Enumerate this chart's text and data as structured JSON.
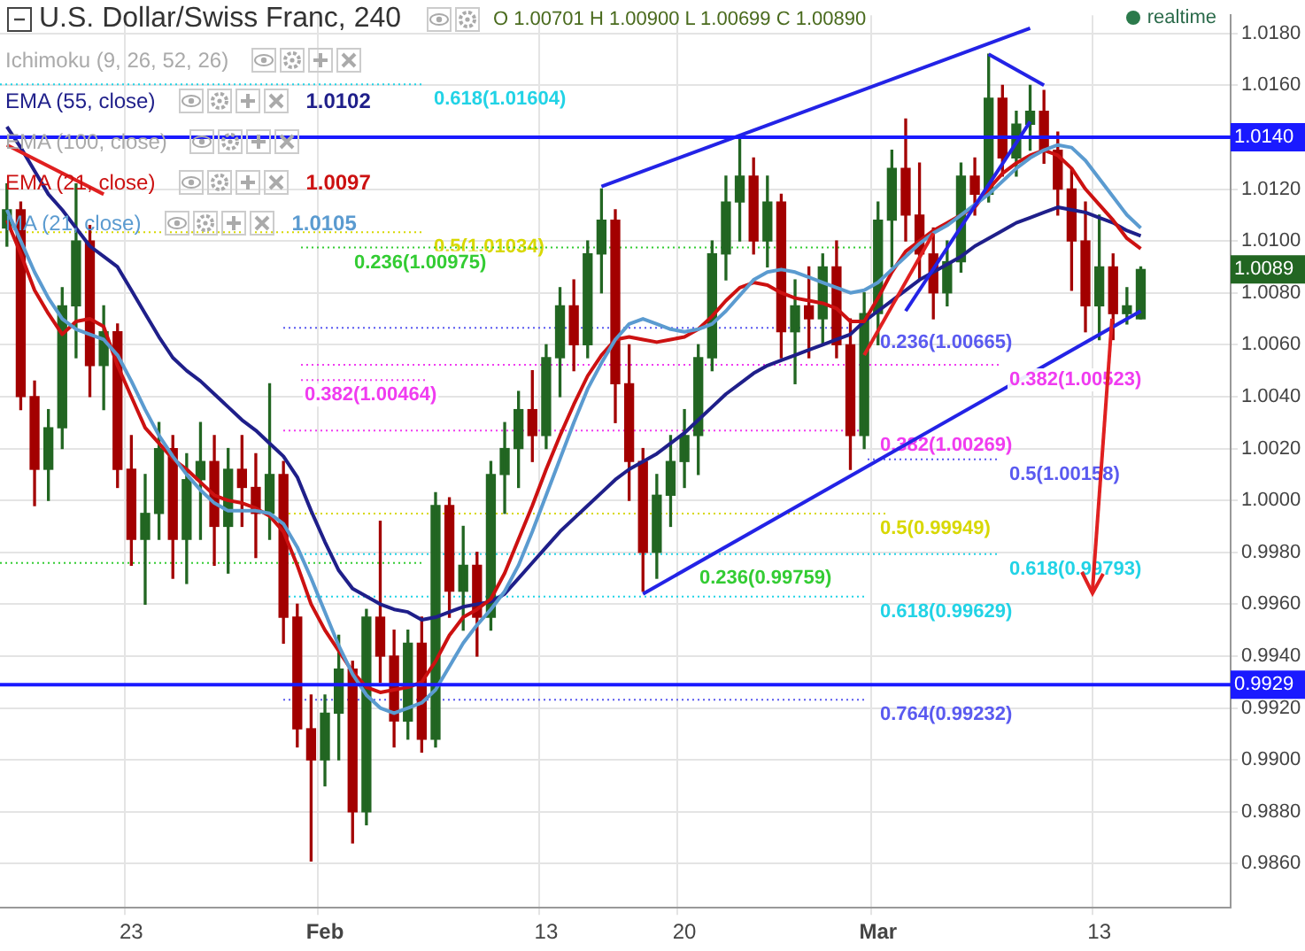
{
  "chart_data": {
    "type": "candlestick",
    "title": "U.S. Dollar/Swiss Franc, 240",
    "categories": [
      null,
      null,
      null,
      null,
      null,
      null,
      null,
      null,
      null,
      "23",
      null,
      null,
      null,
      null,
      null,
      null,
      null,
      null,
      null,
      null,
      null,
      null,
      null,
      "Feb",
      null,
      null,
      null,
      null,
      null,
      null,
      null,
      null,
      null,
      null,
      null,
      null,
      null,
      null,
      null,
      "13",
      null,
      null,
      null,
      null,
      null,
      null,
      null,
      null,
      null,
      "20",
      null,
      null,
      null,
      null,
      null,
      null,
      null,
      null,
      null,
      null,
      null,
      null,
      null,
      "Mar",
      null,
      null,
      null,
      null,
      null,
      null,
      null,
      null,
      null,
      null,
      null,
      null,
      null,
      null,
      null,
      "13",
      null,
      null,
      null,
      null,
      null,
      null,
      null,
      null,
      null
    ],
    "ohlc": [
      [
        1.0105,
        1.0122,
        1.0098,
        1.0112
      ],
      [
        1.0112,
        1.0115,
        1.0035,
        1.004
      ],
      [
        1.004,
        1.0046,
        0.9998,
        1.0012
      ],
      [
        1.0012,
        1.0035,
        1.0,
        1.0028
      ],
      [
        1.0028,
        1.0082,
        1.002,
        1.0075
      ],
      [
        1.0075,
        1.0122,
        1.0055,
        1.01
      ],
      [
        1.01,
        1.0106,
        1.004,
        1.0052
      ],
      [
        1.0052,
        1.0075,
        1.0035,
        1.0065
      ],
      [
        1.0065,
        1.0068,
        1.0005,
        1.0012
      ],
      [
        1.0012,
        1.0025,
        0.9975,
        0.9985
      ],
      [
        0.9985,
        1.001,
        0.996,
        0.9995
      ],
      [
        0.9995,
        1.003,
        0.9985,
        1.002
      ],
      [
        1.002,
        1.0025,
        0.997,
        0.9985
      ],
      [
        0.9985,
        1.0018,
        0.9968,
        1.0008
      ],
      [
        1.0008,
        1.003,
        0.9985,
        1.0015
      ],
      [
        1.0015,
        1.0025,
        0.9975,
        0.999
      ],
      [
        0.999,
        1.002,
        0.9972,
        1.0012
      ],
      [
        1.0012,
        1.0025,
        0.999,
        1.0005
      ],
      [
        1.0005,
        1.0018,
        0.9978,
        0.9995
      ],
      [
        0.9995,
        1.0045,
        0.9985,
        1.001
      ],
      [
        1.001,
        1.0015,
        0.9945,
        0.9955
      ],
      [
        0.9955,
        0.996,
        0.9905,
        0.9912
      ],
      [
        0.9912,
        0.9925,
        0.9861,
        0.99
      ],
      [
        0.99,
        0.9925,
        0.989,
        0.9918
      ],
      [
        0.9918,
        0.9948,
        0.99,
        0.9935
      ],
      [
        0.9935,
        0.9938,
        0.9868,
        0.988
      ],
      [
        0.988,
        0.9958,
        0.9875,
        0.9955
      ],
      [
        0.9955,
        0.9992,
        0.993,
        0.994
      ],
      [
        0.994,
        0.995,
        0.9905,
        0.9915
      ],
      [
        0.9915,
        0.995,
        0.9908,
        0.9945
      ],
      [
        0.9945,
        0.9955,
        0.9903,
        0.9908
      ],
      [
        0.9908,
        1.0003,
        0.9905,
        0.9998
      ],
      [
        0.9998,
        1.0001,
        0.9955,
        0.9965
      ],
      [
        0.9965,
        0.999,
        0.995,
        0.9975
      ],
      [
        0.9975,
        0.998,
        0.994,
        0.9955
      ],
      [
        0.9955,
        1.0015,
        0.995,
        1.001
      ],
      [
        1.001,
        1.003,
        0.9995,
        1.002
      ],
      [
        1.002,
        1.0042,
        1.0005,
        1.0035
      ],
      [
        1.0035,
        1.005,
        1.0015,
        1.0025
      ],
      [
        1.0025,
        1.006,
        1.002,
        1.0055
      ],
      [
        1.0055,
        1.0082,
        1.004,
        1.0075
      ],
      [
        1.0075,
        1.0085,
        1.005,
        1.006
      ],
      [
        1.006,
        1.01,
        1.0055,
        1.0095
      ],
      [
        1.0095,
        1.012,
        1.008,
        1.0108
      ],
      [
        1.0108,
        1.0112,
        1.003,
        1.0045
      ],
      [
        1.0045,
        1.006,
        1.0,
        1.0015
      ],
      [
        1.0015,
        1.002,
        0.9965,
        0.998
      ],
      [
        0.998,
        1.001,
        0.997,
        1.0002
      ],
      [
        1.0002,
        1.0025,
        0.999,
        1.0015
      ],
      [
        1.0015,
        1.0035,
        1.0005,
        1.0025
      ],
      [
        1.0025,
        1.006,
        1.001,
        1.0055
      ],
      [
        1.0055,
        1.01,
        1.005,
        1.0095
      ],
      [
        1.0095,
        1.0125,
        1.0085,
        1.0115
      ],
      [
        1.0115,
        1.014,
        1.01,
        1.0125
      ],
      [
        1.0125,
        1.0132,
        1.0095,
        1.01
      ],
      [
        1.01,
        1.0125,
        1.009,
        1.0115
      ],
      [
        1.0115,
        1.0118,
        1.0055,
        1.0065
      ],
      [
        1.0065,
        1.0085,
        1.0045,
        1.0075
      ],
      [
        1.0075,
        1.009,
        1.0055,
        1.007
      ],
      [
        1.007,
        1.0095,
        1.006,
        1.009
      ],
      [
        1.009,
        1.01,
        1.0055,
        1.006
      ],
      [
        1.006,
        1.007,
        1.0012,
        1.0025
      ],
      [
        1.0025,
        1.008,
        1.002,
        1.0072
      ],
      [
        1.0072,
        1.0115,
        1.006,
        1.0108
      ],
      [
        1.0108,
        1.0135,
        1.009,
        1.0128
      ],
      [
        1.0128,
        1.0147,
        1.01,
        1.011
      ],
      [
        1.011,
        1.013,
        1.0085,
        1.0095
      ],
      [
        1.0095,
        1.0105,
        1.007,
        1.008
      ],
      [
        1.008,
        1.01,
        1.0075,
        1.0092
      ],
      [
        1.0092,
        1.013,
        1.0088,
        1.0125
      ],
      [
        1.0125,
        1.0132,
        1.011,
        1.0118
      ],
      [
        1.0118,
        1.0172,
        1.0115,
        1.0155
      ],
      [
        1.0155,
        1.016,
        1.0125,
        1.0132
      ],
      [
        1.0132,
        1.015,
        1.0125,
        1.0145
      ],
      [
        1.0145,
        1.016,
        1.0135,
        1.015
      ],
      [
        1.015,
        1.0158,
        1.013,
        1.0135
      ],
      [
        1.0135,
        1.0142,
        1.011,
        1.012
      ],
      [
        1.012,
        1.0128,
        1.0081,
        1.01
      ],
      [
        1.01,
        1.0115,
        1.0065,
        1.0075
      ],
      [
        1.0075,
        1.011,
        1.0062,
        1.009
      ],
      [
        1.009,
        1.0095,
        1.0062,
        1.0072
      ],
      [
        1.0072,
        1.0082,
        1.0068,
        1.0075
      ],
      [
        1.007,
        1.009,
        1.007,
        1.0089
      ],
      null,
      null,
      null,
      null,
      null,
      null
    ],
    "colors": [
      "#226622",
      "#a30000",
      "#a30000",
      "#226622",
      "#226622",
      "#226622",
      "#a30000",
      "#226622",
      "#a30000",
      "#a30000",
      "#226622",
      "#226622",
      "#a30000",
      "#226622",
      "#226622",
      "#a30000",
      "#226622",
      "#a30000",
      "#a30000",
      "#226622",
      "#a30000",
      "#a30000",
      "#a30000",
      "#226622",
      "#226622",
      "#a30000",
      "#226622",
      "#a30000",
      "#a30000",
      "#226622",
      "#a30000",
      "#226622",
      "#a30000",
      "#226622",
      "#a30000",
      "#226622",
      "#226622",
      "#226622",
      "#a30000",
      "#226622",
      "#226622",
      "#a30000",
      "#226622",
      "#226622",
      "#a30000",
      "#a30000",
      "#a30000",
      "#226622",
      "#226622",
      "#226622",
      "#226622",
      "#226622",
      "#226622",
      "#226622",
      "#a30000",
      "#226622",
      "#a30000",
      "#226622",
      "#a30000",
      "#226622",
      "#a30000",
      "#a30000",
      "#226622",
      "#226622",
      "#226622",
      "#a30000",
      "#a30000",
      "#a30000",
      "#226622",
      "#226622",
      "#a30000",
      "#226622",
      "#a30000",
      "#226622",
      "#226622",
      "#a30000",
      "#a30000",
      "#a30000",
      "#a30000",
      "#226622",
      "#a30000",
      "#226622",
      "#226622",
      null,
      null,
      null,
      null,
      null,
      null
    ],
    "series": [
      {
        "type": "line",
        "name": "EMA (55, close)",
        "color": "#1f1f8a",
        "values": [
          1.0144,
          1.0136,
          1.0127,
          1.0118,
          1.0112,
          1.0105,
          1.0098,
          1.0094,
          1.009,
          1.0081,
          1.0072,
          1.0063,
          1.0055,
          1.005,
          1.0046,
          1.0041,
          1.0036,
          1.0031,
          1.0027,
          1.0022,
          1.0017,
          1.0009,
          0.9996,
          0.9984,
          0.9973,
          0.9966,
          0.9963,
          0.996,
          0.9958,
          0.9957,
          0.9954,
          0.9955,
          0.9957,
          0.9959,
          0.996,
          0.9961,
          0.9964,
          0.997,
          0.9976,
          0.9982,
          0.9988,
          0.9993,
          0.9998,
          1.0003,
          1.0008,
          1.0012,
          1.0015,
          1.0018,
          1.0022,
          1.0026,
          1.0031,
          1.0036,
          1.0041,
          1.0045,
          1.0049,
          1.0052,
          1.0054,
          1.0056,
          1.0058,
          1.006,
          1.0062,
          1.0064,
          1.0069,
          1.0073,
          1.0077,
          1.0081,
          1.0085,
          1.0088,
          1.0091,
          1.0094,
          1.0098,
          1.0101,
          1.0104,
          1.0107,
          1.0109,
          1.0111,
          1.0113,
          1.0112,
          1.0111,
          1.0109,
          1.0107,
          1.0104,
          1.0102,
          null,
          null,
          null,
          null,
          null,
          null
        ]
      },
      {
        "type": "line",
        "name": "EMA (21, close)",
        "color": "#cc1111",
        "values": [
          1.0108,
          1.0095,
          1.0081,
          1.0072,
          1.0064,
          1.0069,
          1.007,
          1.0067,
          1.0052,
          1.004,
          1.0028,
          1.0022,
          1.0016,
          1.0012,
          1.0007,
          1.0002,
          1.0,
          0.9999,
          0.9997,
          0.9994,
          0.9988,
          0.9975,
          0.996,
          0.995,
          0.9942,
          0.9934,
          0.9928,
          0.9926,
          0.9927,
          0.9928,
          0.993,
          0.9938,
          0.9948,
          0.9955,
          0.9958,
          0.9962,
          0.9972,
          0.9985,
          0.9998,
          1.0012,
          1.0025,
          1.0037,
          1.0048,
          1.0056,
          1.0062,
          1.0063,
          1.0062,
          1.0061,
          1.0062,
          1.0063,
          1.0066,
          1.0071,
          1.0077,
          1.0082,
          1.0084,
          1.0083,
          1.008,
          1.0078,
          1.0077,
          1.0076,
          1.0074,
          1.0069,
          1.0069,
          1.0078,
          1.0088,
          1.0096,
          1.01,
          1.0104,
          1.0107,
          1.011,
          1.0113,
          1.012,
          1.0126,
          1.013,
          1.0133,
          1.0135,
          1.0133,
          1.0128,
          1.012,
          1.0114,
          1.0108,
          1.0101,
          1.0097,
          null,
          null,
          null,
          null,
          null,
          null
        ]
      },
      {
        "type": "line",
        "name": "MA (21, close)",
        "color": "#5b9bd0",
        "values": [
          1.0112,
          1.01,
          1.0088,
          1.0078,
          1.007,
          1.0066,
          1.0064,
          1.0062,
          1.0056,
          1.0046,
          1.0035,
          1.0025,
          1.0017,
          1.001,
          1.0004,
          0.9999,
          0.9996,
          0.9996,
          0.9996,
          0.9995,
          0.9991,
          0.9982,
          0.997,
          0.9957,
          0.9944,
          0.9933,
          0.9925,
          0.992,
          0.9918,
          0.992,
          0.9922,
          0.9927,
          0.9936,
          0.9945,
          0.9952,
          0.9958,
          0.9965,
          0.9975,
          0.9988,
          1.0002,
          1.0016,
          1.003,
          1.0043,
          1.0053,
          1.0062,
          1.0068,
          1.007,
          1.0068,
          1.0066,
          1.0065,
          1.0066,
          1.0068,
          1.0073,
          1.0079,
          1.0085,
          1.0088,
          1.0089,
          1.0088,
          1.0086,
          1.0084,
          1.0082,
          1.008,
          1.0081,
          1.0084,
          1.0089,
          1.0094,
          1.0099,
          1.0103,
          1.0106,
          1.011,
          1.0114,
          1.0118,
          1.0123,
          1.0128,
          1.0132,
          1.0135,
          1.0137,
          1.0136,
          1.0131,
          1.0124,
          1.0117,
          1.011,
          1.0105,
          null,
          null,
          null,
          null,
          null,
          null
        ]
      },
      {
        "type": "line",
        "color": "#2323e6",
        "values": [
          null,
          null,
          null,
          null,
          null,
          null,
          null,
          null,
          null,
          null,
          null,
          null,
          null,
          null,
          null,
          null,
          null,
          null,
          null,
          null,
          null,
          null,
          null,
          null,
          null,
          null,
          null,
          null,
          null,
          null,
          null,
          null,
          null,
          null,
          null,
          null,
          null,
          null,
          null,
          null,
          null,
          null,
          null,
          1.0121,
          null,
          null,
          null,
          null,
          null,
          null,
          null,
          null,
          null,
          null,
          null,
          null,
          null,
          null,
          null,
          null,
          null,
          null,
          null,
          null,
          null,
          null,
          null,
          null,
          null,
          null,
          null,
          null,
          null,
          null,
          1.0182,
          null,
          null,
          null,
          null,
          null,
          null,
          null,
          null,
          null,
          null,
          null,
          null,
          null,
          null
        ]
      },
      {
        "type": "line",
        "color": "#2323e6",
        "values": [
          null,
          null,
          null,
          null,
          null,
          null,
          null,
          null,
          null,
          null,
          null,
          null,
          null,
          null,
          null,
          null,
          null,
          null,
          null,
          null,
          null,
          null,
          null,
          null,
          null,
          null,
          null,
          null,
          null,
          null,
          null,
          null,
          null,
          null,
          null,
          null,
          null,
          null,
          null,
          null,
          null,
          null,
          null,
          null,
          null,
          null,
          0.9964,
          null,
          null,
          null,
          null,
          null,
          null,
          null,
          null,
          null,
          null,
          null,
          null,
          null,
          null,
          null,
          null,
          null,
          null,
          null,
          null,
          null,
          null,
          null,
          null,
          null,
          null,
          null,
          null,
          null,
          null,
          null,
          null,
          null,
          null,
          null,
          1.0073,
          null,
          null,
          null,
          null,
          null,
          null
        ]
      },
      {
        "type": "line",
        "color": "#2323e6",
        "values": [
          null,
          null,
          null,
          null,
          null,
          null,
          null,
          null,
          null,
          null,
          null,
          null,
          null,
          null,
          null,
          null,
          null,
          null,
          null,
          null,
          null,
          null,
          null,
          null,
          null,
          null,
          null,
          null,
          null,
          null,
          null,
          null,
          null,
          null,
          null,
          null,
          null,
          null,
          null,
          null,
          null,
          null,
          null,
          null,
          null,
          null,
          null,
          null,
          null,
          null,
          null,
          null,
          null,
          null,
          null,
          null,
          null,
          null,
          null,
          null,
          null,
          null,
          null,
          null,
          null,
          null,
          null,
          null,
          null,
          null,
          null,
          1.0172,
          null,
          null,
          null,
          1.016,
          null,
          null,
          null,
          null,
          null,
          null,
          null,
          null,
          null,
          null,
          null,
          null,
          null
        ]
      },
      {
        "type": "line",
        "color": "#2323e6",
        "values": [
          null,
          null,
          null,
          null,
          null,
          null,
          null,
          null,
          null,
          null,
          null,
          null,
          null,
          null,
          null,
          null,
          null,
          null,
          null,
          null,
          null,
          null,
          null,
          null,
          null,
          null,
          null,
          null,
          null,
          null,
          null,
          null,
          null,
          null,
          null,
          null,
          null,
          null,
          null,
          null,
          null,
          null,
          null,
          null,
          null,
          null,
          null,
          null,
          null,
          null,
          null,
          null,
          null,
          null,
          null,
          null,
          null,
          null,
          null,
          null,
          null,
          null,
          null,
          null,
          null,
          1.0073,
          null,
          null,
          null,
          null,
          null,
          null,
          null,
          null,
          1.0146,
          null,
          null,
          null,
          null,
          null,
          null,
          null,
          null,
          null,
          null,
          null,
          null,
          null,
          null
        ]
      },
      {
        "type": "line",
        "color": "#e02020",
        "values": [
          null,
          null,
          null,
          null,
          null,
          null,
          null,
          null,
          null,
          null,
          null,
          null,
          null,
          null,
          null,
          null,
          null,
          null,
          null,
          null,
          null,
          null,
          null,
          null,
          null,
          null,
          null,
          null,
          null,
          null,
          null,
          null,
          null,
          null,
          null,
          null,
          null,
          null,
          null,
          null,
          null,
          null,
          null,
          null,
          null,
          null,
          null,
          null,
          null,
          null,
          null,
          null,
          null,
          null,
          null,
          null,
          null,
          null,
          null,
          null,
          null,
          null,
          1.0056,
          null,
          null,
          null,
          null,
          1.0103,
          null,
          null,
          null,
          null,
          null,
          null,
          null,
          null,
          null,
          null,
          null,
          null,
          null,
          null,
          null,
          null,
          null,
          null,
          null,
          null,
          null
        ]
      },
      {
        "type": "line",
        "color": "#e02020",
        "values": [
          1.0137,
          null,
          null,
          null,
          null,
          null,
          null,
          1.0118,
          null,
          null,
          null,
          null,
          null,
          null,
          null,
          null,
          null,
          null,
          null,
          null,
          null,
          null,
          null,
          null,
          null,
          null,
          null,
          null,
          null,
          null,
          null,
          null,
          null,
          null,
          null,
          null,
          null,
          null,
          null,
          null,
          null,
          null,
          null,
          null,
          null,
          null,
          null,
          null,
          null,
          null,
          null,
          null,
          null,
          null,
          null,
          null,
          null,
          null,
          null,
          null,
          null,
          null,
          null,
          null,
          null,
          null,
          null,
          null,
          null,
          null,
          null,
          null,
          null,
          null,
          null,
          null,
          null,
          null,
          null,
          null,
          null,
          null,
          null,
          null,
          null,
          null,
          null,
          null,
          null
        ]
      }
    ],
    "ylim": [
      0.9843,
      1.0187
    ],
    "yticks": [
      {
        "value": 0.986,
        "label": "0.9860"
      },
      {
        "value": 0.988,
        "label": "0.9880"
      },
      {
        "value": 0.99,
        "label": "0.9900"
      },
      {
        "value": 0.992,
        "label": "0.9920"
      },
      {
        "value": 0.994,
        "label": "0.9940"
      },
      {
        "value": 0.996,
        "label": "0.9960"
      },
      {
        "value": 0.998,
        "label": "0.9980"
      },
      {
        "value": 1.0,
        "label": "1.0000"
      },
      {
        "value": 1.002,
        "label": "1.0020"
      },
      {
        "value": 1.004,
        "label": "1.0040"
      },
      {
        "value": 1.006,
        "label": "1.0060"
      },
      {
        "value": 1.008,
        "label": "1.0080"
      },
      {
        "value": 1.01,
        "label": "1.0100"
      },
      {
        "value": 1.012,
        "label": "1.0120"
      },
      {
        "value": 1.016,
        "label": "1.0160"
      },
      {
        "value": 1.018,
        "label": "1.0180"
      }
    ],
    "grid": true,
    "legend": "top left",
    "ref_lines": [
      {
        "axis": "y",
        "value": 1.014,
        "label": "1.0140",
        "color": "#1a1aff",
        "line_style": "solid"
      },
      {
        "axis": "y",
        "value": 0.9929,
        "label": "0.9929",
        "color": "#1a1aff",
        "line_style": "solid"
      },
      {
        "axis": "y",
        "value": 1.01604,
        "label": "0.618(1.01604)",
        "color": "#22d3e6",
        "line_style": "dotted"
      },
      {
        "axis": "y",
        "value": 1.01034,
        "label": "0.5(1.01034)",
        "color": "#d8d800",
        "line_style": "dotted"
      },
      {
        "axis": "y",
        "value": 1.00464,
        "label": "0.382(1.00464)",
        "color": "#f03cf0",
        "line_style": "dotted"
      },
      {
        "axis": "y",
        "value": 0.99759,
        "label": "0.236(0.99759)",
        "color": "#33cc33",
        "line_style": "dotted"
      },
      {
        "axis": "y",
        "value": 1.00975,
        "label": "0.236(1.00975)",
        "color": "#33cc33",
        "line_style": "dotted"
      },
      {
        "axis": "y",
        "value": 1.00665,
        "label": "0.236(1.00665)",
        "color": "#5a5af0",
        "line_style": "dotted"
      },
      {
        "axis": "y",
        "value": 1.00523,
        "label": "0.382(1.00523)",
        "color": "#f03cf0",
        "line_style": "dotted"
      },
      {
        "axis": "y",
        "value": 1.00269,
        "label": "0.382(1.00269)",
        "color": "#f03cf0",
        "line_style": "dotted"
      },
      {
        "axis": "y",
        "value": 1.00158,
        "label": "0.5(1.00158)",
        "color": "#5a5af0",
        "line_style": "dotted"
      },
      {
        "axis": "y",
        "value": 0.99949,
        "label": "0.5(0.99949)",
        "color": "#d8d800",
        "line_style": "dotted"
      },
      {
        "axis": "y",
        "value": 0.99793,
        "label": "0.618(0.99793)",
        "color": "#22d3e6",
        "line_style": "dotted"
      },
      {
        "axis": "y",
        "value": 0.99629,
        "label": "0.618(0.99629)",
        "color": "#22d3e6",
        "line_style": "dotted"
      },
      {
        "axis": "y",
        "value": 0.99232,
        "label": "0.764(0.99232)",
        "color": "#5a5af0",
        "line_style": "dotted"
      }
    ],
    "annotations": [
      "O 1.00701 H 1.00900 L 1.00699 C 1.00890",
      "realtime",
      "Ichimoku (9, 26, 52, 26)",
      "1.0102",
      "EMA (100, close)",
      "1.0097",
      "1.0105",
      "1.0089"
    ]
  }
}
